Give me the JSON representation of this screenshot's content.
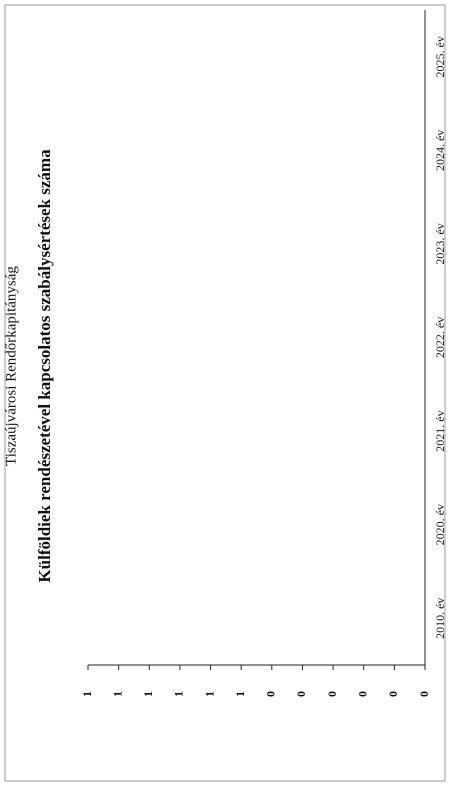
{
  "chart_data": {
    "type": "bar",
    "title": "Tiszaújvárosi Rendőrkapitányság",
    "subtitle": "Külföldiek rendészetével kapcsolatos szabálysértések száma",
    "categories": [
      "2010. év",
      "2020. év",
      "2021. év",
      "2022. év",
      "2023. év",
      "2024. év",
      "2025. év"
    ],
    "values": [
      0,
      0,
      0,
      0,
      0,
      0,
      0
    ],
    "color": "#4472c4",
    "ylim": [
      0,
      1.1
    ],
    "yticks": [
      {
        "value": 0,
        "label": "0"
      },
      {
        "value": 0.1,
        "label": "0"
      },
      {
        "value": 0.2,
        "label": "0"
      },
      {
        "value": 0.3,
        "label": "0"
      },
      {
        "value": 0.4,
        "label": "0"
      },
      {
        "value": 0.5,
        "label": "0"
      },
      {
        "value": 0.6,
        "label": "1"
      },
      {
        "value": 0.7,
        "label": "1"
      },
      {
        "value": 0.8,
        "label": "1"
      },
      {
        "value": 0.9,
        "label": "1"
      },
      {
        "value": 1.0,
        "label": "1"
      },
      {
        "value": 1.1,
        "label": "1"
      }
    ],
    "grid": false
  }
}
